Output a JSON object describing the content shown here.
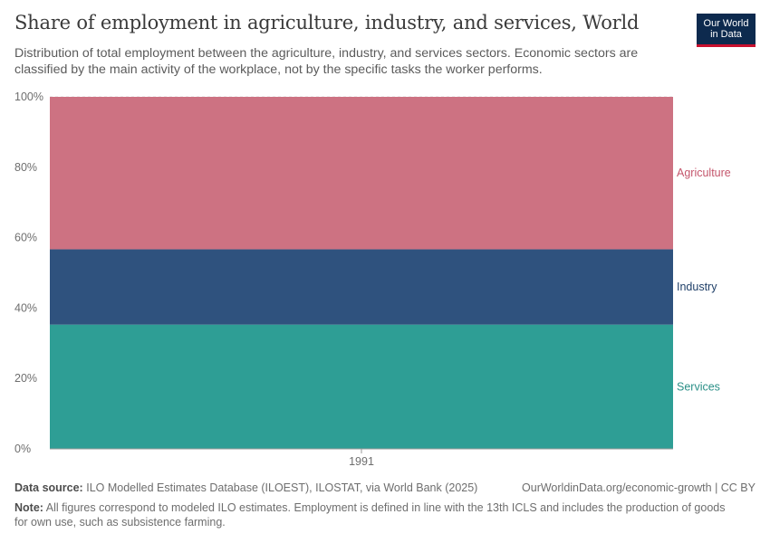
{
  "header": {
    "title": "Share of employment in agriculture, industry, and services, World",
    "subtitle": "Distribution of total employment between the agriculture, industry, and services sectors. Economic sectors are classified by the main activity of the workplace, not by the specific tasks the worker performs.",
    "logo_line1": "Our World",
    "logo_line2": "in Data"
  },
  "chart_data": {
    "type": "area",
    "stacked": true,
    "x": [
      "1991"
    ],
    "ylim": [
      0,
      100
    ],
    "yticks": [
      "0%",
      "20%",
      "40%",
      "60%",
      "80%",
      "100%"
    ],
    "ytick_values": [
      0,
      20,
      40,
      60,
      80,
      100
    ],
    "grid": true,
    "legend": "right, inline labels",
    "series": [
      {
        "name": "Services",
        "values": [
          35.3
        ],
        "color": "#2e9e95",
        "label_color": "#2a8f87"
      },
      {
        "name": "Industry",
        "values": [
          21.4
        ],
        "color": "#2f527e",
        "label_color": "#1f3f68"
      },
      {
        "name": "Agriculture",
        "values": [
          43.3
        ],
        "color": "#cd7282",
        "label_color": "#c4566c"
      }
    ]
  },
  "footer": {
    "source_label": "Data source:",
    "source_text": "ILO Modelled Estimates Database (ILOEST), ILOSTAT, via World Bank (2025)",
    "url_text": "OurWorldinData.org/economic-growth | CC BY",
    "note_label": "Note:",
    "note_text": "All figures correspond to modeled ILO estimates. Employment is defined in line with the 13th ICLS and includes the production of goods for own use, such as subsistence farming."
  }
}
